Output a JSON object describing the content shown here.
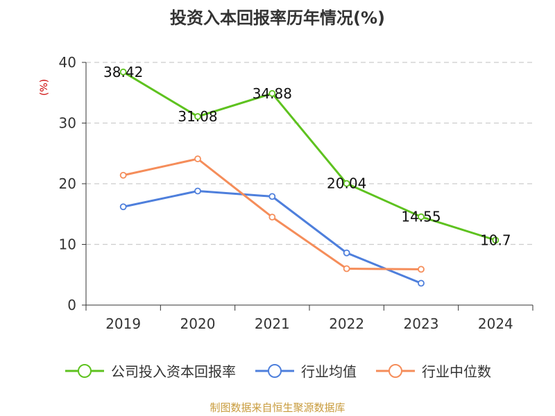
{
  "chart_data": {
    "type": "line",
    "title": "投资入本回报率历年情况(%)",
    "ylabel": "(%)",
    "xlabel": "",
    "categories": [
      "2019",
      "2020",
      "2021",
      "2022",
      "2023",
      "2024"
    ],
    "ylim": [
      0,
      40
    ],
    "yticks": [
      0,
      10,
      20,
      30,
      40
    ],
    "grid": true,
    "legend_position": "bottom",
    "series": [
      {
        "name": "公司投入资本回报率",
        "color": "#5ec21f",
        "values": [
          38.42,
          31.08,
          34.88,
          20.04,
          14.55,
          10.7
        ],
        "labels": [
          "38.42",
          "31.08",
          "34.88",
          "20.04",
          "14.55",
          "10.7"
        ]
      },
      {
        "name": "行业均值",
        "color": "#4e7fdc",
        "values": [
          16.2,
          18.8,
          17.9,
          8.6,
          3.6,
          null
        ]
      },
      {
        "name": "行业中位数",
        "color": "#f58d5a",
        "values": [
          21.4,
          24.1,
          14.5,
          6.0,
          5.9,
          null
        ]
      }
    ]
  },
  "source": "制图数据来自恒生聚源数据库"
}
